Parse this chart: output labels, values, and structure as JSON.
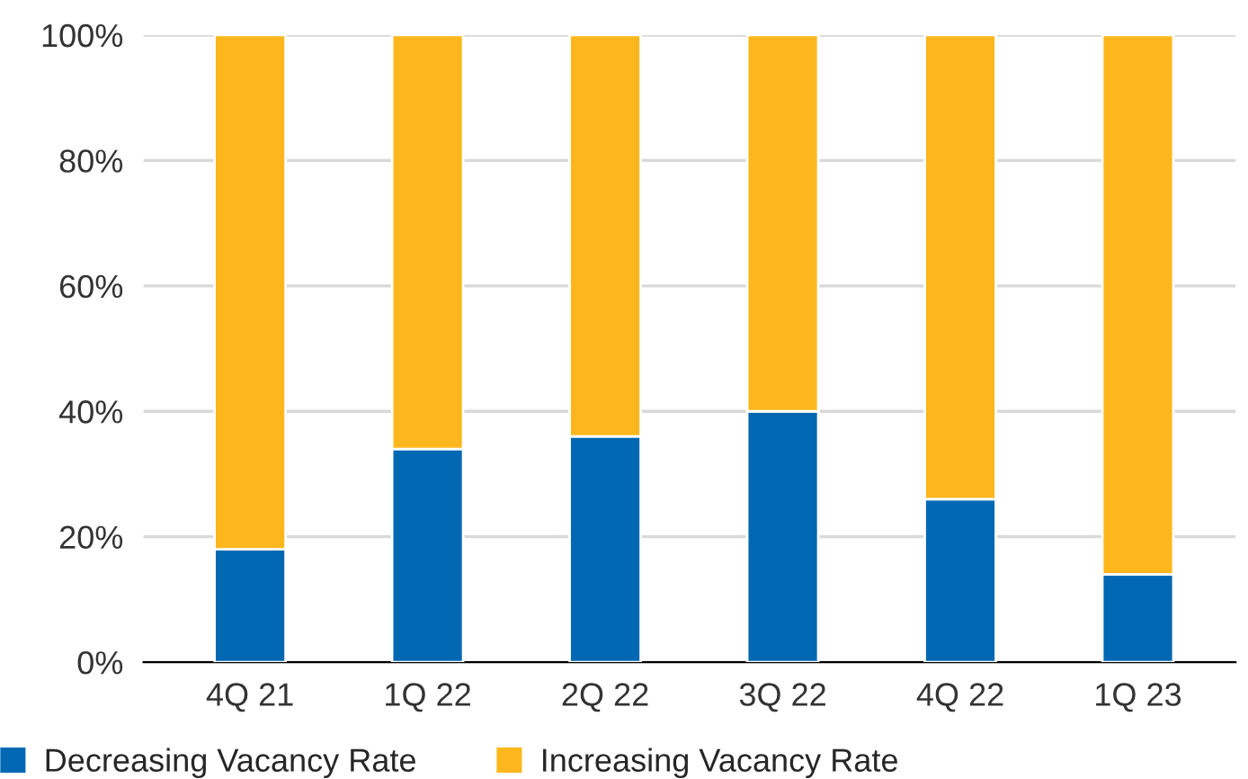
{
  "chart_data": {
    "type": "bar",
    "stacked": true,
    "categories": [
      "4Q 21",
      "1Q 22",
      "2Q 22",
      "3Q 22",
      "4Q 22",
      "1Q 23"
    ],
    "series": [
      {
        "name": "Decreasing Vacancy Rate",
        "color": "#0068b3",
        "values": [
          18,
          34,
          36,
          40,
          26,
          14
        ]
      },
      {
        "name": "Increasing Vacancy Rate",
        "color": "#fdb71c",
        "values": [
          82,
          66,
          64,
          60,
          74,
          86
        ]
      }
    ],
    "ylim": [
      0,
      100
    ],
    "yticks": [
      {
        "value": 0,
        "label": "0%"
      },
      {
        "value": 20,
        "label": "20%"
      },
      {
        "value": 40,
        "label": "40%"
      },
      {
        "value": 60,
        "label": "60%"
      },
      {
        "value": 80,
        "label": "80%"
      },
      {
        "value": 100,
        "label": "100%"
      }
    ],
    "grid": "y",
    "legend": "bottom left"
  }
}
